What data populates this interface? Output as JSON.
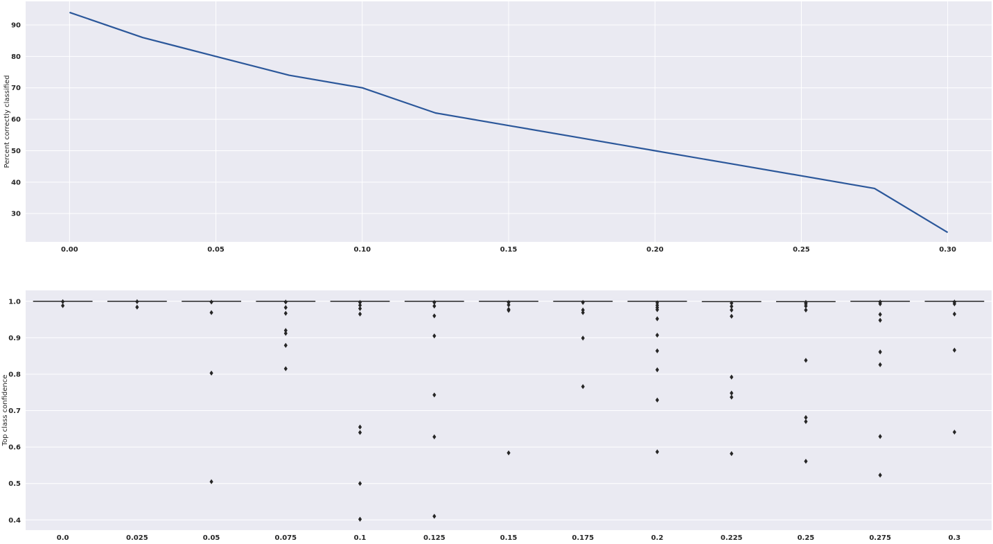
{
  "chart_data": [
    {
      "type": "line",
      "title": "",
      "xlabel": "",
      "ylabel": "Percent correctly classified",
      "xlim": [
        -0.015,
        0.315
      ],
      "ylim": [
        21,
        97.5
      ],
      "xticks": [
        0.0,
        0.05,
        0.1,
        0.15,
        0.2,
        0.25,
        0.3
      ],
      "xtick_labels": [
        "0.00",
        "0.05",
        "0.10",
        "0.15",
        "0.20",
        "0.25",
        "0.30"
      ],
      "yticks": [
        30,
        40,
        50,
        60,
        70,
        80,
        90
      ],
      "ytick_labels": [
        "30",
        "40",
        "50",
        "60",
        "70",
        "80",
        "90"
      ],
      "grid": true,
      "line_color": "#2b579a",
      "series": [
        {
          "x": [
            0.0,
            0.025,
            0.05,
            0.075,
            0.1,
            0.125,
            0.15,
            0.175,
            0.2,
            0.225,
            0.25,
            0.275,
            0.3
          ],
          "values": [
            94,
            86,
            80,
            74,
            70,
            62,
            58,
            54,
            50,
            46,
            42,
            38,
            24
          ]
        }
      ]
    },
    {
      "type": "box",
      "title": "",
      "xlabel": "",
      "ylabel": "Top class confidence",
      "ylim": [
        0.372,
        1.03
      ],
      "yticks": [
        0.4,
        0.5,
        0.6,
        0.7,
        0.8,
        0.9,
        1.0
      ],
      "ytick_labels": [
        "0.4",
        "0.5",
        "0.6",
        "0.7",
        "0.8",
        "0.9",
        "1.0"
      ],
      "categories": [
        "0.0",
        "0.025",
        "0.05",
        "0.075",
        "0.1",
        "0.125",
        "0.15",
        "0.175",
        "0.2",
        "0.225",
        "0.25",
        "0.275",
        "0.3"
      ],
      "grid": true,
      "box_color": "#262626",
      "median": [
        1.0,
        1.0,
        1.0,
        1.0,
        1.0,
        1.0,
        1.0,
        1.0,
        1.0,
        0.999,
        0.999,
        1.0,
        1.0
      ],
      "outliers": [
        [
          0.999,
          0.988
        ],
        [
          0.999,
          0.984
        ],
        [
          0.998,
          0.969,
          0.803,
          0.505
        ],
        [
          0.998,
          0.983,
          0.967,
          0.92,
          0.912,
          0.879,
          0.815
        ],
        [
          0.997,
          0.989,
          0.98,
          0.965,
          0.655,
          0.64,
          0.5,
          0.402
        ],
        [
          0.997,
          0.987,
          0.96,
          0.905,
          0.743,
          0.628,
          0.41
        ],
        [
          0.997,
          0.99,
          0.978,
          0.975,
          0.584
        ],
        [
          0.997,
          0.976,
          0.969,
          0.899,
          0.766
        ],
        [
          0.996,
          0.989,
          0.983,
          0.977,
          0.952,
          0.907,
          0.864,
          0.812,
          0.729,
          0.587
        ],
        [
          0.995,
          0.986,
          0.976,
          0.959,
          0.792,
          0.748,
          0.737,
          0.582
        ],
        [
          0.997,
          0.993,
          0.987,
          0.976,
          0.838,
          0.681,
          0.67,
          0.561
        ],
        [
          0.998,
          0.993,
          0.964,
          0.948,
          0.861,
          0.826,
          0.629,
          0.523
        ],
        [
          0.998,
          0.993,
          0.965,
          0.866,
          0.641
        ]
      ]
    }
  ]
}
